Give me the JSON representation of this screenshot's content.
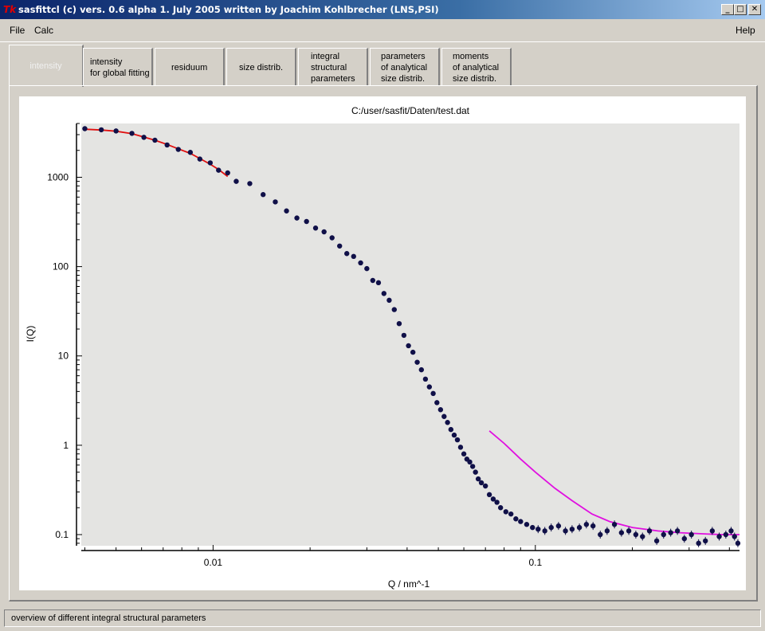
{
  "window": {
    "title": "sasfittcl (c) vers. 0.6 alpha 1. July 2005 written by Joachim Kohlbrecher (LNS,PSI)",
    "app_icon_text": "Tk"
  },
  "menu": {
    "file": "File",
    "calc": "Calc",
    "help": "Help"
  },
  "tabs": [
    {
      "label": "intensity"
    },
    {
      "label": "intensity\nfor global fitting"
    },
    {
      "label": "residuum"
    },
    {
      "label": "size distrib."
    },
    {
      "label": "integral\nstructural\nparameters"
    },
    {
      "label": "parameters\nof analytical\nsize distrib."
    },
    {
      "label": "moments\nof analytical\nsize distrib."
    }
  ],
  "status": {
    "text": "overview of different integral structural parameters"
  },
  "colors": {
    "plot_background": "#e4e4e2",
    "marker": "#101048",
    "fit_low_q": "#e01010",
    "fit_high_q": "#e010e0"
  },
  "chart_data": {
    "type": "scatter",
    "title": "C:/user/sasfit/Daten/test.dat",
    "xlabel": "Q / nm^-1",
    "ylabel": "I(Q)",
    "xscale": "log",
    "yscale": "log",
    "xlim": [
      0.0039,
      0.43
    ],
    "ylim": [
      0.075,
      4000
    ],
    "x_ticks": [
      0.01,
      0.1
    ],
    "x_tick_labels": [
      "0.01",
      "0.1"
    ],
    "y_ticks": [
      0.1,
      1,
      10,
      100,
      1000
    ],
    "y_tick_labels": [
      "0.1",
      "1",
      "10",
      "100",
      "1000"
    ],
    "grid": false,
    "series": [
      {
        "x": [
          0.004,
          0.0045,
          0.005,
          0.0056,
          0.0061,
          0.0066,
          0.0072,
          0.0078,
          0.0085,
          0.0091,
          0.0098,
          0.0104,
          0.0111,
          0.0118,
          0.013,
          0.0143,
          0.0156,
          0.0169,
          0.0182,
          0.0195,
          0.0208,
          0.0221,
          0.0234,
          0.0247,
          0.026,
          0.0273,
          0.0287,
          0.03,
          0.0313,
          0.0326,
          0.0339,
          0.0352,
          0.0365,
          0.0378,
          0.0391,
          0.0404,
          0.0417,
          0.043,
          0.0443,
          0.0456,
          0.0469,
          0.0482,
          0.0495,
          0.0508,
          0.0521,
          0.0534,
          0.0547,
          0.056,
          0.0573,
          0.0586,
          0.06,
          0.0613,
          0.0626,
          0.0639,
          0.0652,
          0.0665,
          0.068,
          0.07,
          0.072,
          0.074,
          0.076,
          0.078,
          0.081,
          0.084,
          0.087,
          0.09,
          0.094,
          0.098,
          0.102,
          0.107,
          0.112,
          0.118,
          0.124,
          0.13,
          0.137,
          0.144,
          0.151,
          0.159,
          0.167,
          0.176,
          0.185,
          0.195,
          0.205,
          0.215,
          0.226,
          0.238,
          0.25,
          0.263,
          0.276,
          0.29,
          0.305,
          0.321,
          0.337,
          0.354,
          0.372,
          0.39,
          0.405,
          0.415,
          0.425
        ],
        "y": [
          3500,
          3400,
          3300,
          3100,
          2800,
          2600,
          2300,
          2050,
          1900,
          1600,
          1450,
          1200,
          1120,
          900,
          850,
          640,
          530,
          420,
          350,
          320,
          270,
          245,
          210,
          170,
          140,
          130,
          110,
          95,
          70,
          66,
          50,
          42,
          33,
          23,
          17,
          13,
          11,
          8.5,
          7,
          5.5,
          4.5,
          3.8,
          3.0,
          2.5,
          2.1,
          1.8,
          1.5,
          1.3,
          1.15,
          0.95,
          0.8,
          0.7,
          0.65,
          0.58,
          0.5,
          0.42,
          0.38,
          0.35,
          0.28,
          0.25,
          0.23,
          0.2,
          0.18,
          0.17,
          0.15,
          0.14,
          0.13,
          0.12,
          0.115,
          0.11,
          0.12,
          0.125,
          0.11,
          0.115,
          0.12,
          0.13,
          0.125,
          0.1,
          0.11,
          0.13,
          0.105,
          0.11,
          0.1,
          0.095,
          0.11,
          0.085,
          0.1,
          0.105,
          0.11,
          0.09,
          0.1,
          0.08,
          0.085,
          0.11,
          0.095,
          0.1,
          0.11,
          0.095,
          0.08
        ]
      }
    ],
    "fit_low_q": {
      "x": [
        0.004,
        0.0045,
        0.005,
        0.0056,
        0.0061,
        0.0066,
        0.0072,
        0.0078,
        0.0085,
        0.0091,
        0.0098,
        0.0104,
        0.0111
      ],
      "y": [
        3450,
        3380,
        3280,
        3080,
        2820,
        2600,
        2330,
        2080,
        1850,
        1620,
        1400,
        1220,
        1020
      ]
    },
    "fit_high_q": {
      "x": [
        0.072,
        0.08,
        0.09,
        0.1,
        0.115,
        0.13,
        0.15,
        0.17,
        0.2,
        0.24,
        0.28,
        0.33,
        0.38,
        0.43
      ],
      "y": [
        1.45,
        1.05,
        0.7,
        0.5,
        0.33,
        0.24,
        0.17,
        0.14,
        0.12,
        0.11,
        0.105,
        0.102,
        0.1,
        0.1
      ]
    }
  }
}
